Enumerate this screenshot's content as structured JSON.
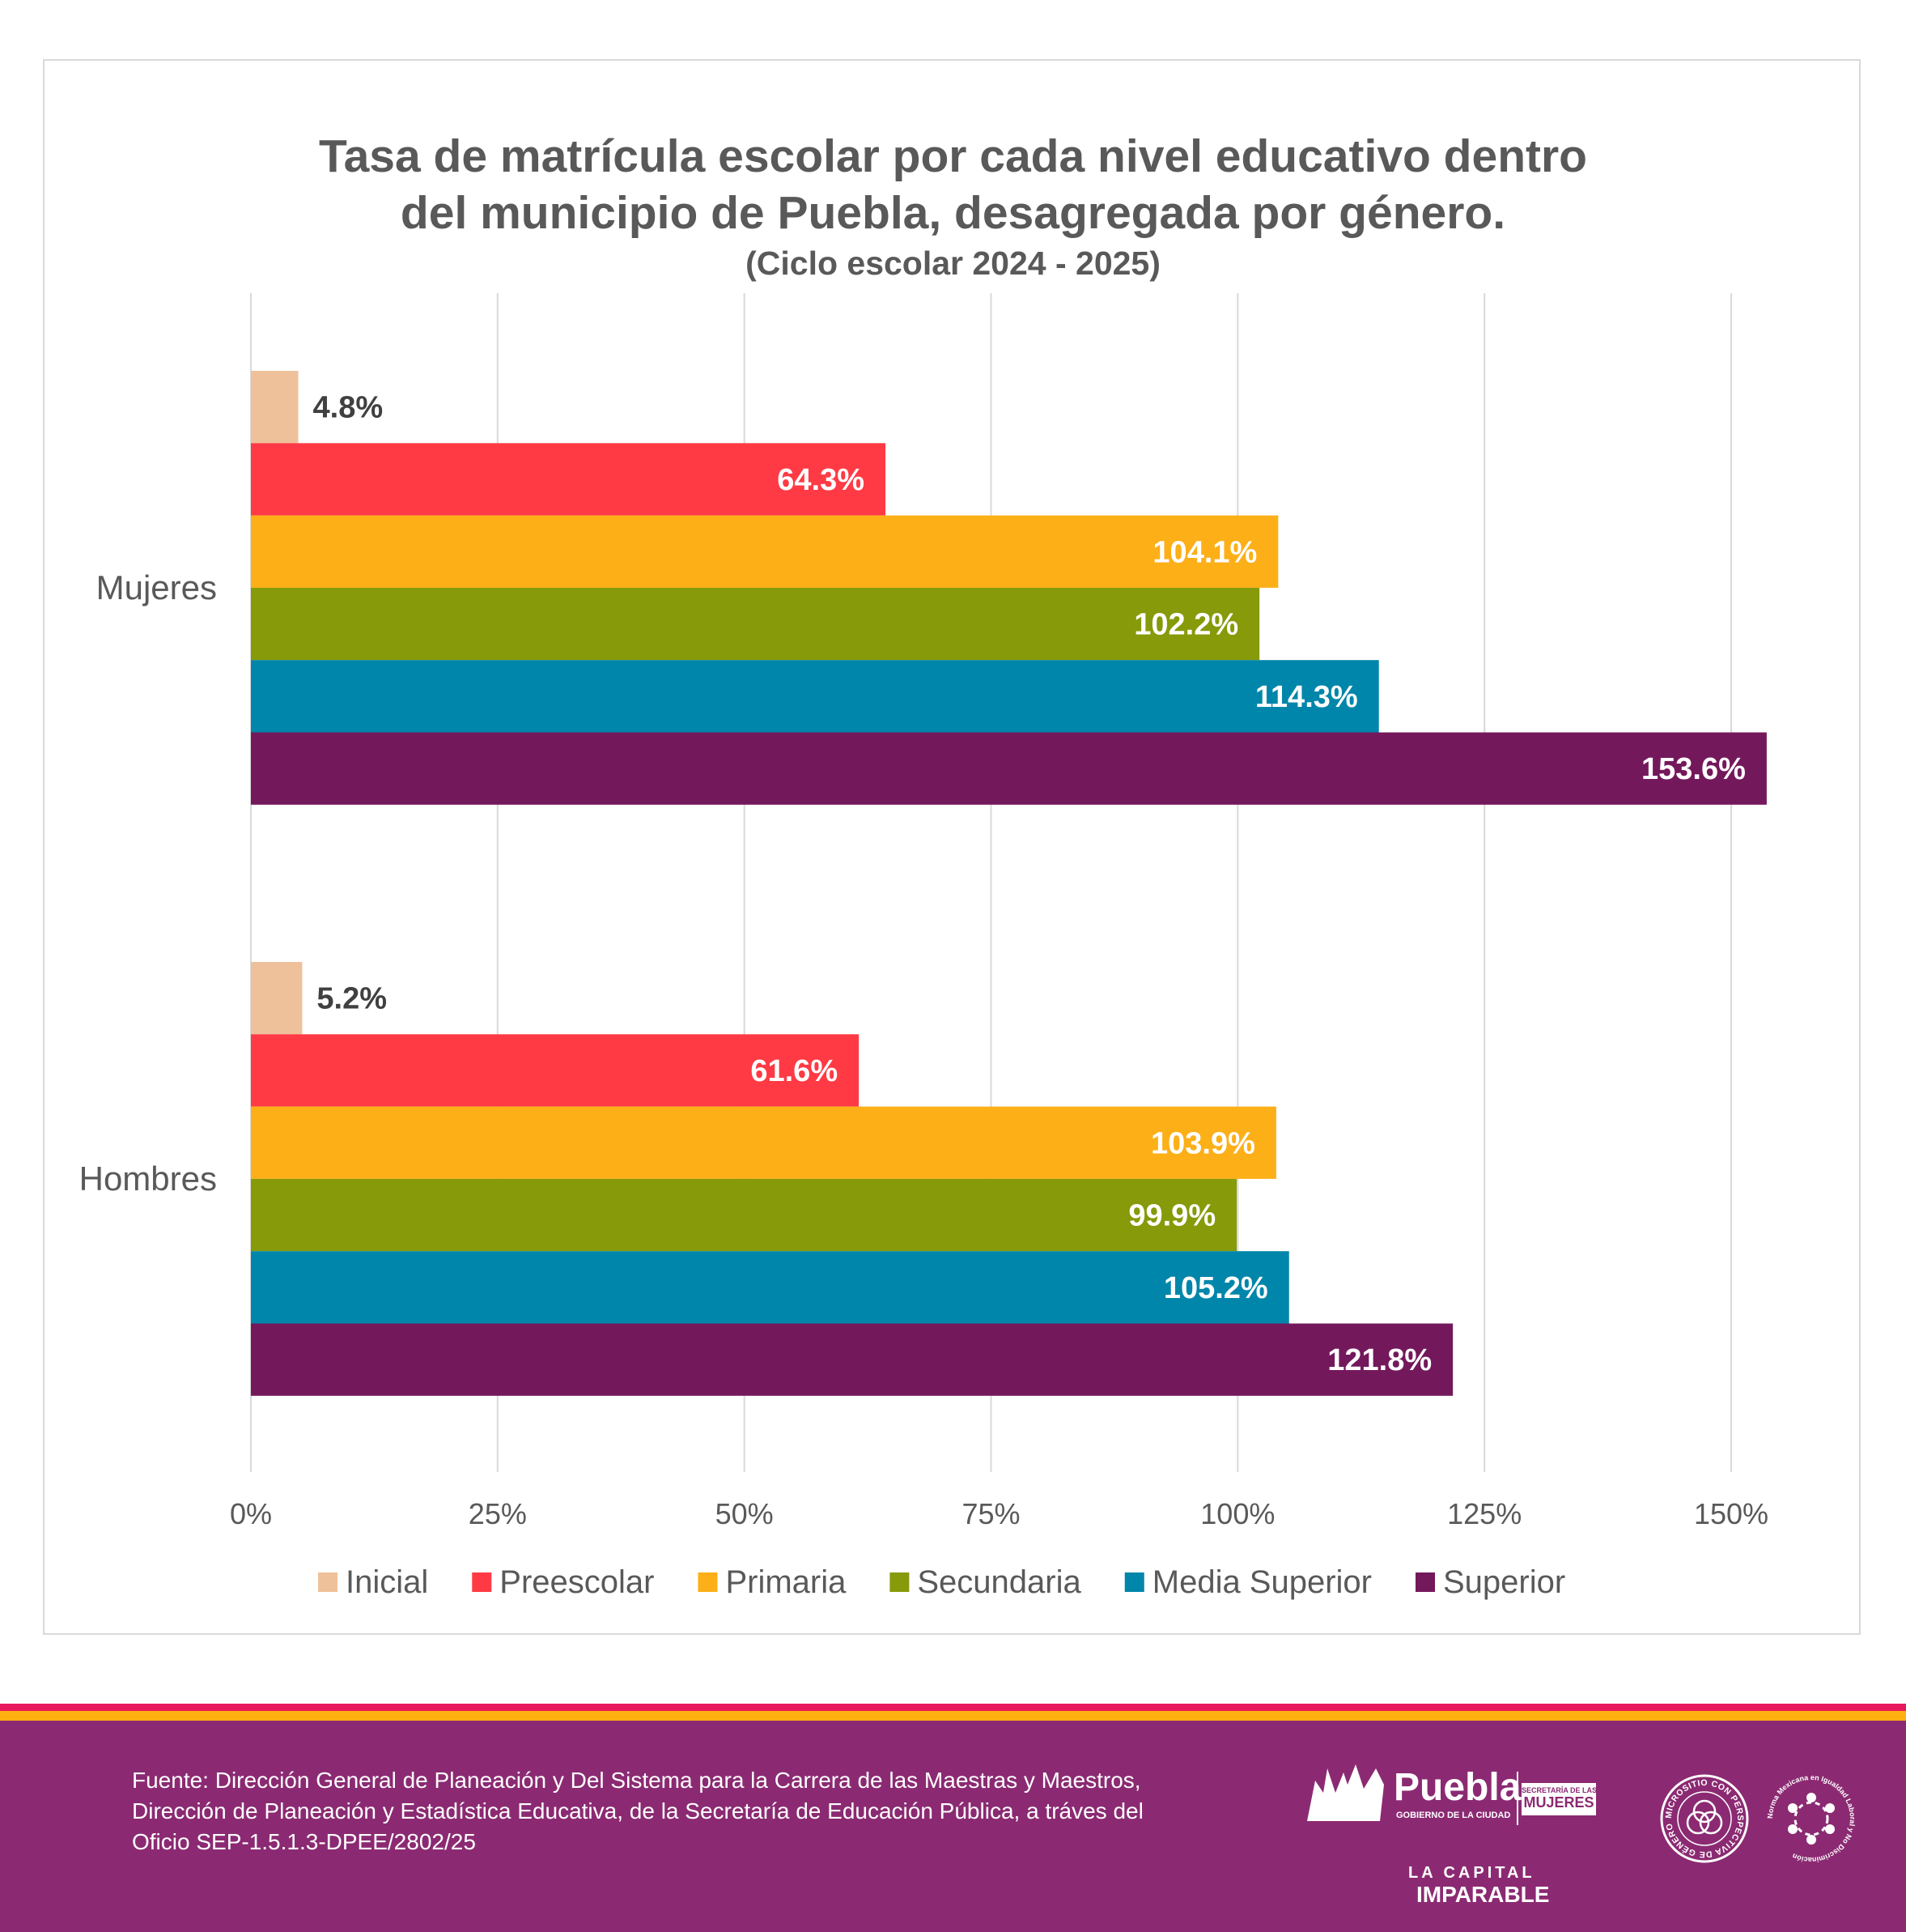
{
  "chart_data": {
    "type": "bar",
    "orientation": "horizontal",
    "title": "Tasa de matrícula escolar por cada nivel educativo dentro del municipio de Puebla, desagregada por género.",
    "title_lines": [
      "Tasa de matrícula escolar por cada nivel educativo dentro",
      "del municipio de Puebla, desagregada por género."
    ],
    "subtitle": "(Ciclo escolar 2024 - 2025)",
    "categories": [
      "Mujeres",
      "Hombres"
    ],
    "series": [
      {
        "name": "Inicial",
        "color": "#EFC19A",
        "values": [
          4.8,
          5.2
        ],
        "labels": [
          "4.8%",
          "5.2%"
        ]
      },
      {
        "name": "Preescolar",
        "color": "#FF3A44",
        "values": [
          64.3,
          61.6
        ],
        "labels": [
          "64.3%",
          "61.6%"
        ]
      },
      {
        "name": "Primaria",
        "color": "#FCAF17",
        "values": [
          104.1,
          103.9
        ],
        "labels": [
          "104.1%",
          "103.9%"
        ]
      },
      {
        "name": "Secundaria",
        "color": "#869A0A",
        "values": [
          102.2,
          99.9
        ],
        "labels": [
          "102.2%",
          "99.9%"
        ]
      },
      {
        "name": "Media Superior",
        "color": "#0086AA",
        "values": [
          114.3,
          105.2
        ],
        "labels": [
          "114.3%",
          "105.2%"
        ]
      },
      {
        "name": "Superior",
        "color": "#74185C",
        "values": [
          153.6,
          121.8
        ],
        "labels": [
          "153.6%",
          "121.8%"
        ]
      }
    ],
    "xlim": [
      0,
      150
    ],
    "xticks": [
      "0%",
      "25%",
      "50%",
      "75%",
      "100%",
      "125%",
      "150%"
    ],
    "grid": true,
    "legend_position": "bottom",
    "xlabel": "",
    "ylabel": ""
  },
  "footer": {
    "source": "Fuente: Dirección General de Planeación y Del Sistema para la Carrera de las Maestras y Maestros, Dirección de Planeación y Estadística Educativa, de la Secretaría de Educación Pública, a tráves del Oficio SEP-1.5.1.3-DPEE/2802/25",
    "logos": {
      "puebla": "Puebla",
      "gobierno": "GOBIERNO DE LA CIUDAD",
      "secretaria": "SECRETARÍA DE LAS",
      "mujeres": "MUJERES",
      "capital": "LA CAPITAL",
      "imparable": "IMPARABLE",
      "micrositio": "MICROSITIO CON PERSPECTIVA DE GÉNERO",
      "norma": "Norma Mexicana en Igualdad Laboral y No Discriminación"
    },
    "colors": {
      "purple": "#8B2A72",
      "red": "#E8175D",
      "orange": "#FDB010"
    }
  }
}
